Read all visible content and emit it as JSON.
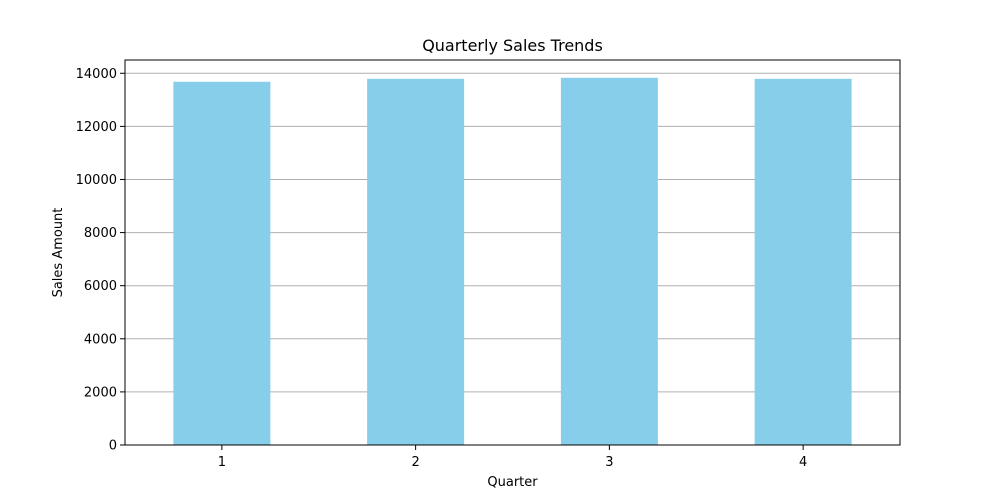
{
  "chart_data": {
    "type": "bar",
    "title": "Quarterly Sales Trends",
    "xlabel": "Quarter",
    "ylabel": "Sales Amount",
    "categories": [
      "1",
      "2",
      "3",
      "4"
    ],
    "values": [
      13680,
      13790,
      13830,
      13790
    ],
    "ylim": [
      0,
      14500
    ],
    "yticks": [
      0,
      2000,
      4000,
      6000,
      8000,
      10000,
      12000,
      14000
    ],
    "ytick_labels": [
      "0",
      "2000",
      "4000",
      "6000",
      "8000",
      "10000",
      "12000",
      "14000"
    ],
    "grid": "horizontal",
    "bar_color": "#87ceeb"
  }
}
